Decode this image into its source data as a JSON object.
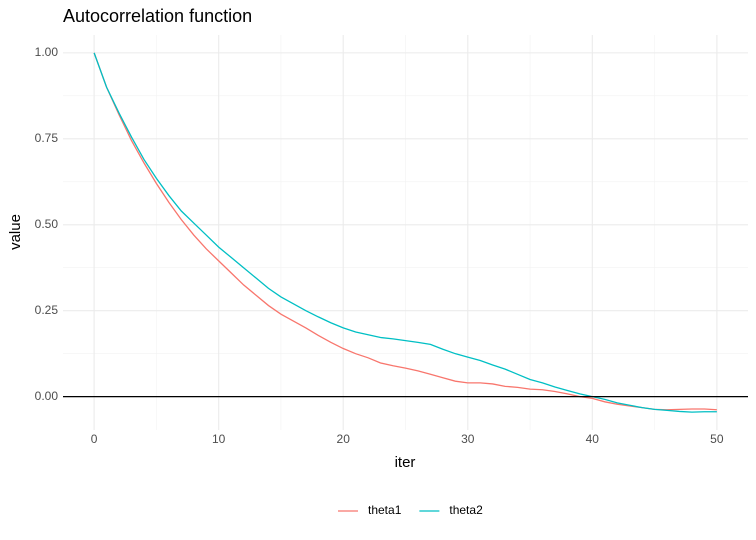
{
  "chart_data": {
    "type": "line",
    "title": "Autocorrelation function",
    "x_label": "iter",
    "y_label": "value",
    "x": [
      0,
      1,
      2,
      3,
      4,
      5,
      6,
      7,
      8,
      9,
      10,
      11,
      12,
      13,
      14,
      15,
      16,
      17,
      18,
      19,
      20,
      21,
      22,
      23,
      24,
      25,
      26,
      27,
      28,
      29,
      30,
      31,
      32,
      33,
      34,
      35,
      36,
      37,
      38,
      39,
      40,
      41,
      42,
      43,
      44,
      45,
      46,
      47,
      48,
      49,
      50
    ],
    "series": [
      {
        "name": "theta1",
        "color": "#F8766D",
        "values": [
          1.0,
          0.9,
          0.82,
          0.745,
          0.68,
          0.62,
          0.565,
          0.515,
          0.47,
          0.43,
          0.395,
          0.36,
          0.325,
          0.295,
          0.265,
          0.24,
          0.22,
          0.2,
          0.178,
          0.158,
          0.14,
          0.125,
          0.113,
          0.098,
          0.09,
          0.083,
          0.075,
          0.065,
          0.055,
          0.045,
          0.04,
          0.04,
          0.037,
          0.03,
          0.027,
          0.022,
          0.02,
          0.015,
          0.008,
          0.0,
          -0.005,
          -0.015,
          -0.022,
          -0.027,
          -0.032,
          -0.037,
          -0.038,
          -0.037,
          -0.036,
          -0.036,
          -0.038
        ]
      },
      {
        "name": "theta2",
        "color": "#00BFC4",
        "values": [
          1.0,
          0.9,
          0.825,
          0.755,
          0.69,
          0.635,
          0.585,
          0.54,
          0.505,
          0.47,
          0.435,
          0.405,
          0.375,
          0.345,
          0.315,
          0.29,
          0.27,
          0.25,
          0.232,
          0.215,
          0.2,
          0.188,
          0.18,
          0.172,
          0.168,
          0.163,
          0.158,
          0.152,
          0.138,
          0.125,
          0.115,
          0.105,
          0.092,
          0.08,
          0.065,
          0.05,
          0.04,
          0.028,
          0.018,
          0.008,
          0.0,
          -0.008,
          -0.018,
          -0.025,
          -0.032,
          -0.037,
          -0.04,
          -0.043,
          -0.045,
          -0.044,
          -0.044
        ]
      }
    ],
    "xlim": [
      -2.5,
      52.5
    ],
    "xticks": [
      0,
      10,
      20,
      30,
      40,
      50
    ],
    "ylim": [
      -0.097,
      1.052
    ],
    "yticks": [
      {
        "value": 0,
        "label": "0.00"
      },
      {
        "value": 0.25,
        "label": "0.25"
      },
      {
        "value": 0.5,
        "label": "0.50"
      },
      {
        "value": 0.75,
        "label": "0.75"
      },
      {
        "value": 1,
        "label": "1.00"
      }
    ],
    "hline": 0,
    "grid": true,
    "legend": "bottom"
  }
}
